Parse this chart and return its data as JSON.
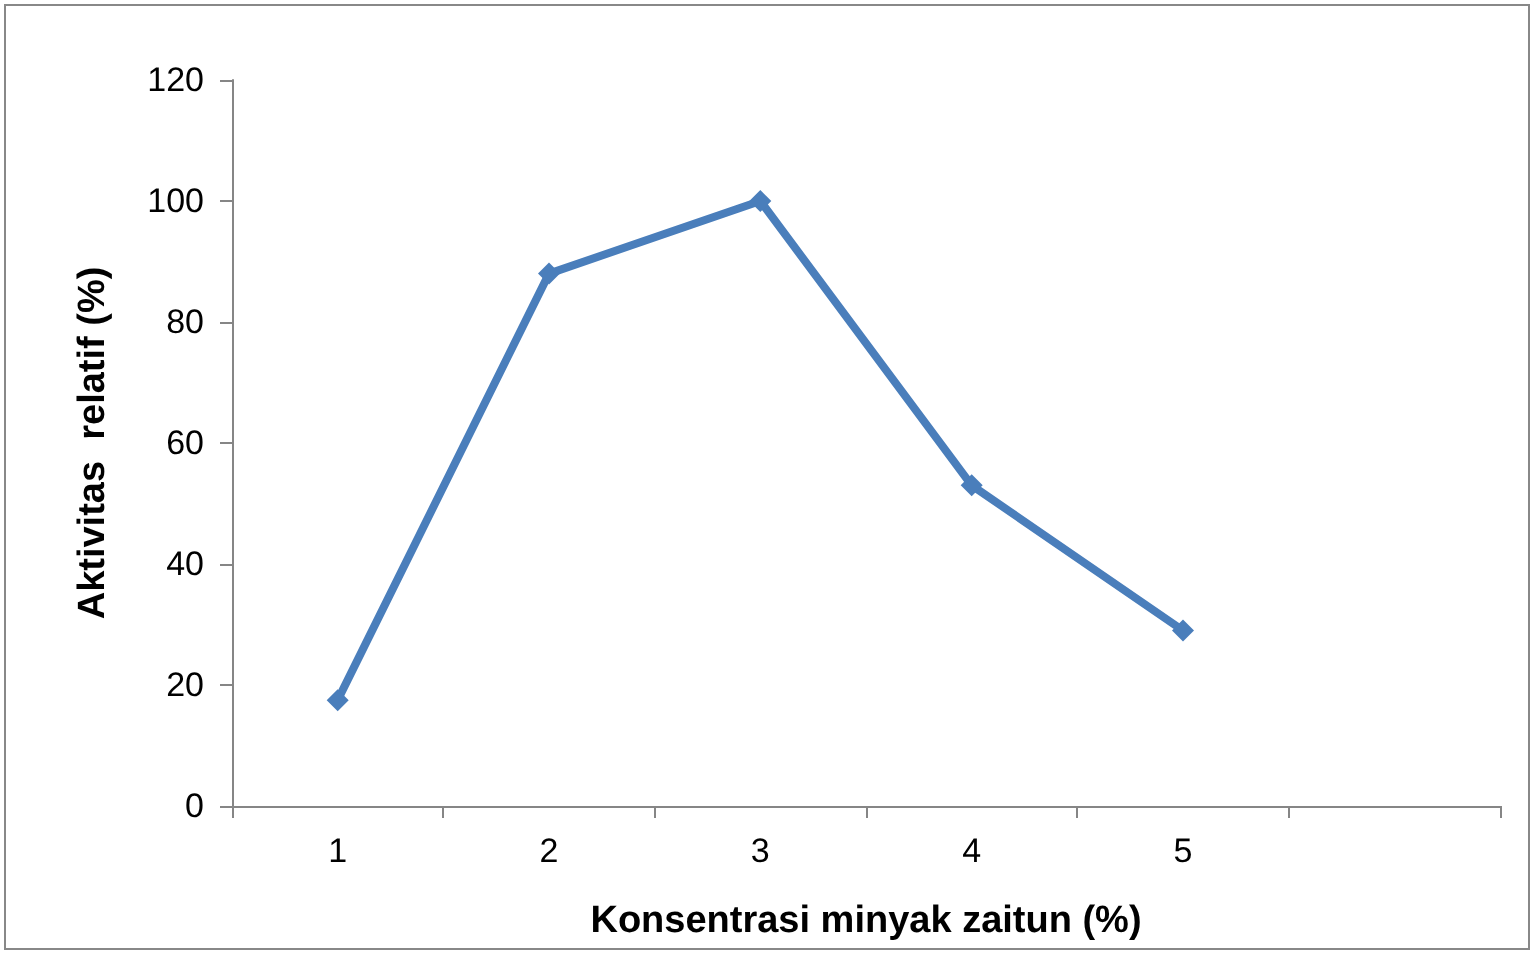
{
  "chart_data": {
    "type": "line",
    "xlabel": "Konsentrasi minyak zaitun (%)",
    "ylabel": "Aktivitas  relatif (%)",
    "categories": [
      "1",
      "2",
      "3",
      "4",
      "5",
      null
    ],
    "series": [
      {
        "color": "#4a7ebb",
        "values": [
          17.5,
          88,
          100,
          53,
          29,
          null
        ]
      }
    ],
    "ylim": [
      0,
      120
    ],
    "yticks": [
      0,
      20,
      40,
      60,
      80,
      100,
      120
    ],
    "grid": false,
    "marker": "diamond",
    "line_style": "solid"
  }
}
